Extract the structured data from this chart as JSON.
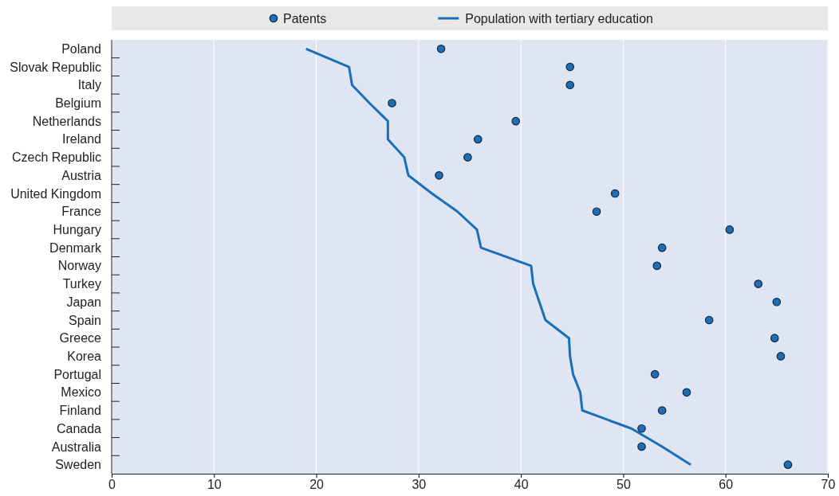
{
  "chart_data": {
    "type": "scatter",
    "orientation": "horizontal",
    "categories": [
      "Poland",
      "Slovak Republic",
      "Italy",
      "Belgium",
      "Netherlands",
      "Ireland",
      "Czech Republic",
      "Austria",
      "United Kingdom",
      "France",
      "Hungary",
      "Denmark",
      "Norway",
      "Turkey",
      "Japan",
      "Spain",
      "Greece",
      "Korea",
      "Portugal",
      "Mexico",
      "Finland",
      "Canada",
      "Australia",
      "Sweden"
    ],
    "series": [
      {
        "name": "Patents",
        "marker": "circle",
        "color": "#1f6eb4",
        "values": [
          32.2,
          44.8,
          44.8,
          27.4,
          39.5,
          35.8,
          34.8,
          32.0,
          49.2,
          47.4,
          60.4,
          53.8,
          53.3,
          63.2,
          65.0,
          58.4,
          64.8,
          65.4,
          53.1,
          56.2,
          53.8,
          51.8,
          51.8,
          66.1
        ]
      },
      {
        "name": "Population with tertiary education",
        "type": "line",
        "marker": "none",
        "line_style": "solid",
        "color": "#1a6fb8",
        "values": [
          19.0,
          23.2,
          23.5,
          25.2,
          27.0,
          27.0,
          28.6,
          29.0,
          31.3,
          33.8,
          35.7,
          36.1,
          41.0,
          41.2,
          41.8,
          42.4,
          44.7,
          44.8,
          45.1,
          45.8,
          46.0,
          50.8,
          53.8,
          56.6
        ]
      }
    ],
    "xlim": [
      0,
      70
    ],
    "xticks": [
      0,
      10,
      20,
      30,
      40,
      50,
      60,
      70
    ],
    "grid": "x",
    "legend": "top"
  }
}
